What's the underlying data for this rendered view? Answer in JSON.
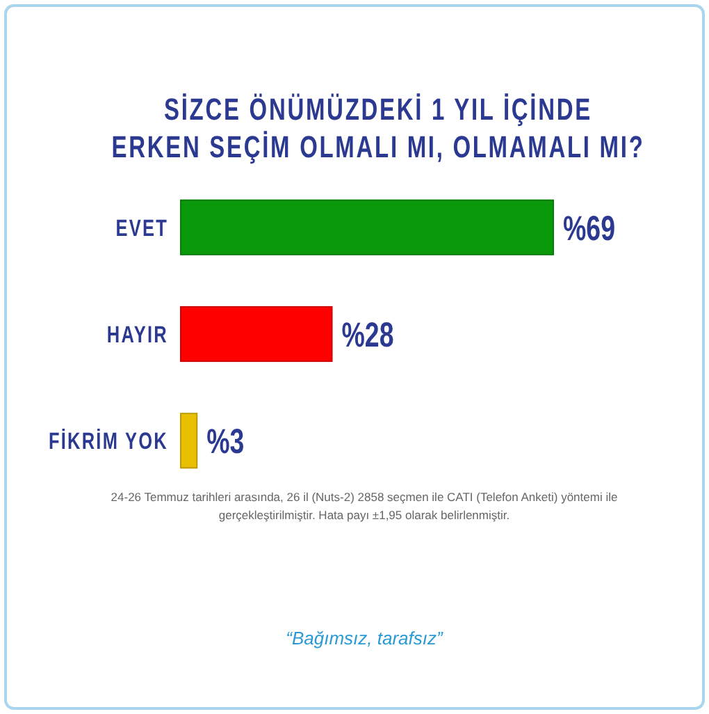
{
  "chart_data": {
    "type": "bar",
    "orientation": "horizontal",
    "title": "SİZCE ÖNÜMÜZDEKİ 1 YIL İÇİNDE\nERKEN SEÇİM OLMALI MI, OLMAMALI MI?",
    "categories": [
      "EVET",
      "HAYIR",
      "FİKRİM YOK"
    ],
    "values": [
      69,
      28,
      3
    ],
    "colors": [
      "#0a990a",
      "#ff0000",
      "#e8c000"
    ],
    "value_labels": [
      "%69",
      "%28",
      "%3"
    ],
    "tick_labels": "y",
    "annotations": [
      "24-26 Temmuz tarihleri arasında, 26 il (Nuts-2) 2858 seçmen ile CATI (Telefon Anketi) yöntemi ile gerçekleştirilmiştir. Hata payı ±1,95 olarak belirlenmiştir.",
      "“Bağımsız, tarafsız”"
    ]
  }
}
